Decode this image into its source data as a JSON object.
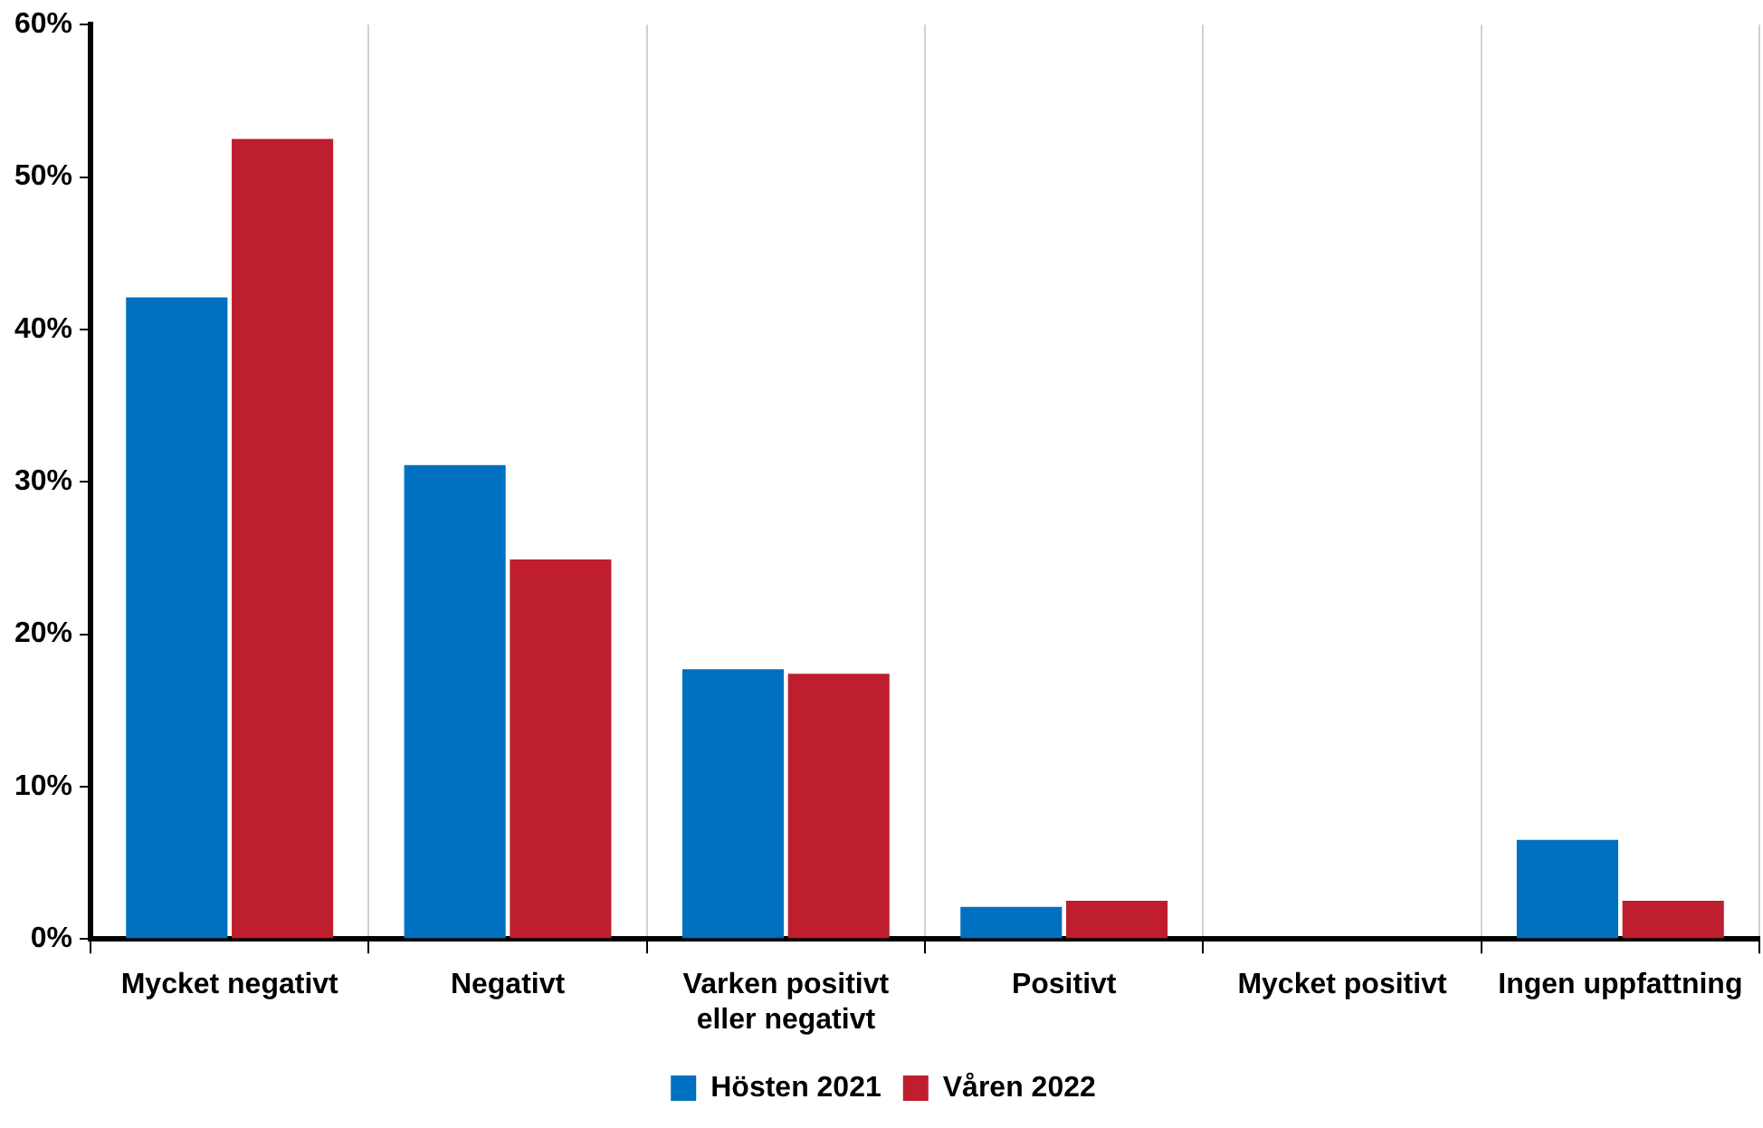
{
  "chart_data": {
    "type": "bar",
    "categories": [
      "Mycket negativt",
      "Negativt",
      "Varken positivt eller negativt",
      "Positivt",
      "Mycket positivt",
      "Ingen uppfattning"
    ],
    "series": [
      {
        "name": "Hösten 2021",
        "color": "#0070c0",
        "values": [
          42.1,
          31.1,
          17.7,
          2.1,
          0,
          6.5
        ]
      },
      {
        "name": "Våren 2022",
        "color": "#be1e2d",
        "values": [
          52.5,
          24.9,
          17.4,
          2.5,
          0,
          2.5
        ]
      }
    ],
    "ylim": [
      0,
      60
    ],
    "yticks": [
      {
        "value": 0,
        "label": "0%"
      },
      {
        "value": 10,
        "label": "10%"
      },
      {
        "value": 20,
        "label": "20%"
      },
      {
        "value": 30,
        "label": "30%"
      },
      {
        "value": 40,
        "label": "40%"
      },
      {
        "value": 50,
        "label": "50%"
      },
      {
        "value": 60,
        "label": "60%"
      }
    ],
    "grid": "x",
    "legend": "bottom"
  }
}
